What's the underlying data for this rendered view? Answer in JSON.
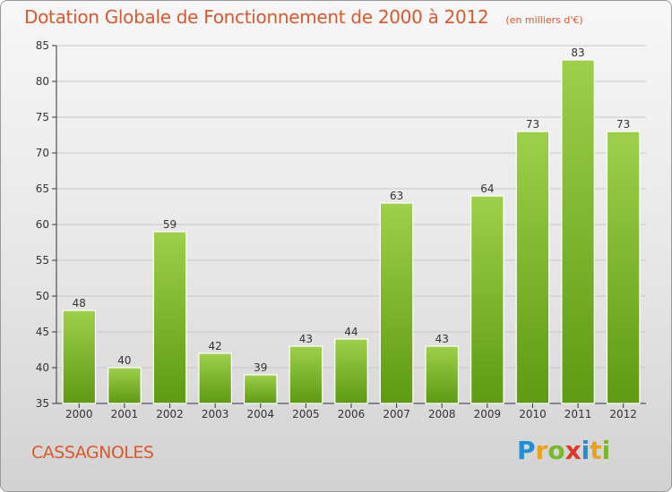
{
  "header": {
    "title": "Dotation Globale de Fonctionnement de 2000 à 2012",
    "subtitle": "(en milliers d'€)"
  },
  "footer": {
    "place": "CASSAGNOLES",
    "logo_text": "Proxiti",
    "logo_letters": [
      {
        "char": "P",
        "color": "#1f8fd6"
      },
      {
        "char": "r",
        "color": "#e8a21c"
      },
      {
        "char": "o",
        "color": "#7ab829"
      },
      {
        "char": "x",
        "color": "#d93b2b"
      },
      {
        "char": "i",
        "color": "#1f8fd6"
      },
      {
        "char": "t",
        "color": "#e8a21c"
      },
      {
        "char": "i",
        "color": "#7ab829"
      }
    ]
  },
  "colors": {
    "bar_top": "#9ed04a",
    "bar_bottom": "#5e9a12",
    "bar_stroke": "#ffffff",
    "axis": "#333333",
    "grid": "#c8c8c8",
    "title": "#d9582d"
  },
  "chart_data": {
    "type": "bar",
    "categories": [
      "2000",
      "2001",
      "2002",
      "2003",
      "2004",
      "2005",
      "2006",
      "2007",
      "2008",
      "2009",
      "2010",
      "2011",
      "2012"
    ],
    "values": [
      48,
      40,
      59,
      42,
      39,
      43,
      44,
      63,
      43,
      64,
      73,
      83,
      73
    ],
    "ylim": [
      35,
      85
    ],
    "yticks": [
      35,
      40,
      45,
      50,
      55,
      60,
      65,
      70,
      75,
      80,
      85
    ],
    "data_labels": true,
    "grid": true
  }
}
